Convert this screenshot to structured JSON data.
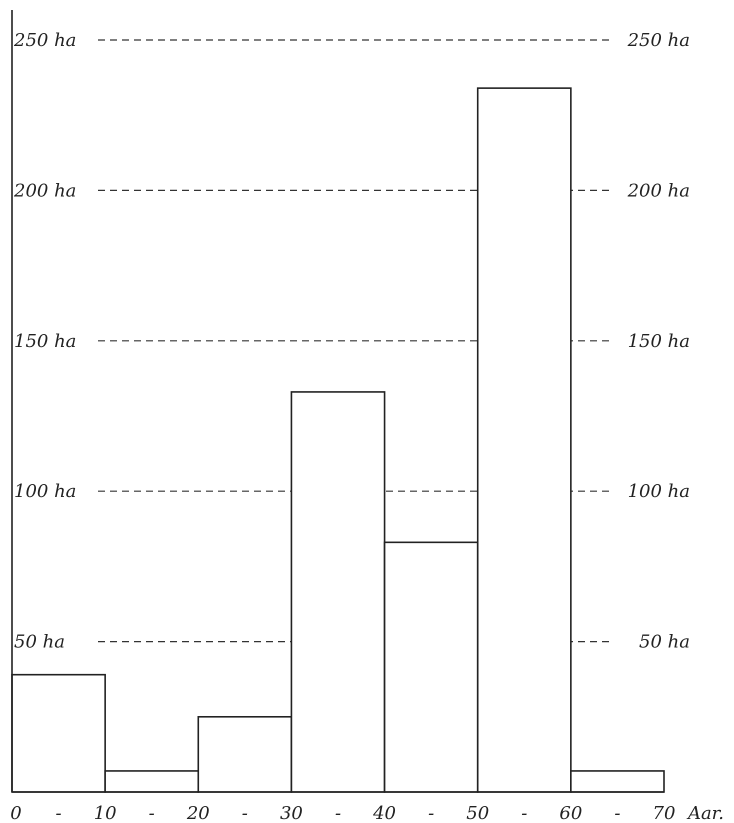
{
  "chart_data": {
    "type": "bar",
    "bins": [
      {
        "from": 0,
        "to": 10,
        "value": 39
      },
      {
        "from": 10,
        "to": 20,
        "value": 7
      },
      {
        "from": 20,
        "to": 30,
        "value": 25
      },
      {
        "from": 30,
        "to": 40,
        "value": 133
      },
      {
        "from": 40,
        "to": 50,
        "value": 83
      },
      {
        "from": 50,
        "to": 60,
        "value": 234
      },
      {
        "from": 60,
        "to": 70,
        "value": 7
      }
    ],
    "y_ticks": [
      {
        "value": 50,
        "label": "50 ha"
      },
      {
        "value": 100,
        "label": "100 ha"
      },
      {
        "value": 150,
        "label": "150 ha"
      },
      {
        "value": 200,
        "label": "200 ha"
      },
      {
        "value": 250,
        "label": "250 ha"
      }
    ],
    "x_tick_labels": [
      "0",
      "-",
      "10",
      "-",
      "20",
      "-",
      "30",
      "-",
      "40",
      "-",
      "50",
      "-",
      "60",
      "-",
      "70",
      "Aar."
    ],
    "ylim": [
      0,
      260
    ],
    "xlim": [
      0,
      70
    ],
    "grid": true,
    "title": "",
    "xlabel": "",
    "ylabel": ""
  }
}
